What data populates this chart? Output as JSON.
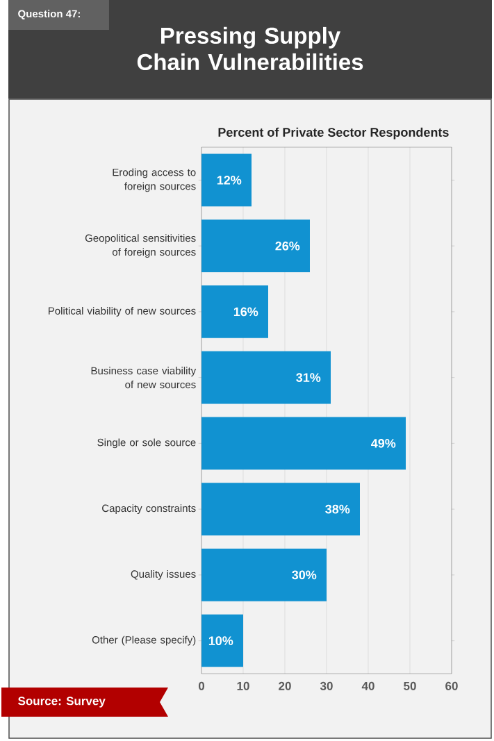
{
  "chart_data": {
    "type": "bar",
    "orientation": "horizontal",
    "title": "Pressing Supply Chain Vulnerabilities",
    "xlabel": "Percent of Private Sector Respondents",
    "annotations": [
      "Question 47:",
      "Source: Survey"
    ],
    "categories": [
      "Eroding access to foreign sources",
      "Geopolitical sensitivities of foreign sources",
      "Political viability of new sources",
      "Business case viability of new sources",
      "Single or sole source",
      "Capacity constraints",
      "Quality issues",
      "Other (Please specify)"
    ],
    "values": [
      12,
      26,
      16,
      31,
      49,
      38,
      30,
      10
    ],
    "value_labels": [
      "12%",
      "26%",
      "16%",
      "31%",
      "49%",
      "38%",
      "30%",
      "10%"
    ],
    "color": "#1192d1",
    "xlim": [
      0,
      60
    ],
    "xticks": [
      0,
      10,
      20,
      30,
      40,
      50,
      60
    ],
    "grid": "x"
  }
}
